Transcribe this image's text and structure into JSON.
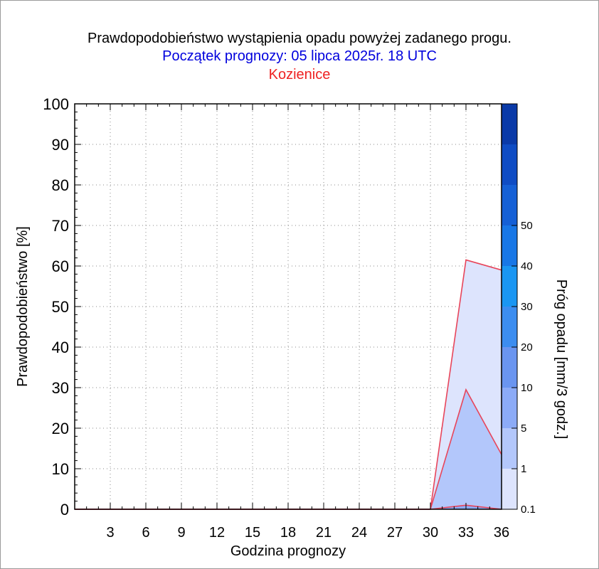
{
  "title": "Prawdopodobieństwo wystąpienia opadu powyżej zadanego progu.",
  "subtitle": "Początek prognozy: 05 lipca 2025r. 18 UTC",
  "location": "Kozienice",
  "colors": {
    "title": "#000000",
    "subtitle": "#0000dd",
    "location": "#ee2222",
    "series_line": "#e8455a",
    "grid": "#888888"
  },
  "chart_data": {
    "type": "area",
    "xlabel": "Godzina prognozy",
    "ylabel": "Prawdopodobieństwo [%]",
    "xlim": [
      0,
      36
    ],
    "ylim": [
      0,
      100
    ],
    "x_ticks": [
      3,
      6,
      9,
      12,
      15,
      18,
      21,
      24,
      27,
      30,
      33,
      36
    ],
    "y_ticks": [
      0,
      10,
      20,
      30,
      40,
      50,
      60,
      70,
      80,
      90,
      100
    ],
    "grid": true,
    "x": [
      0,
      3,
      6,
      9,
      12,
      15,
      18,
      21,
      24,
      27,
      30,
      33,
      36
    ],
    "series": [
      {
        "threshold": "0.1",
        "color": "#dde4fd",
        "values": [
          0,
          0,
          0,
          0,
          0,
          0,
          0,
          0,
          0,
          0,
          0,
          61.5,
          59
        ]
      },
      {
        "threshold": "1",
        "color": "#b3c7fb",
        "values": [
          0,
          0,
          0,
          0,
          0,
          0,
          0,
          0,
          0,
          0,
          0,
          29.5,
          13.5
        ]
      },
      {
        "threshold": "5",
        "color": "#8cabf7",
        "values": [
          0,
          0,
          0,
          0,
          0,
          0,
          0,
          0,
          0,
          0,
          0,
          1,
          0
        ]
      }
    ],
    "colorbar": {
      "label": "Próg opadu [mm/3 godz.]",
      "tick_labels": [
        "0.1",
        "1",
        "5",
        "10",
        "20",
        "30",
        "40",
        "50"
      ],
      "colors": [
        "#dde4fd",
        "#b3c7fb",
        "#8cabf7",
        "#6a95f0",
        "#3c8df0",
        "#1a96f2",
        "#1877e6",
        "#1560d6",
        "#0f4cc4",
        "#0a3aa8"
      ]
    }
  }
}
